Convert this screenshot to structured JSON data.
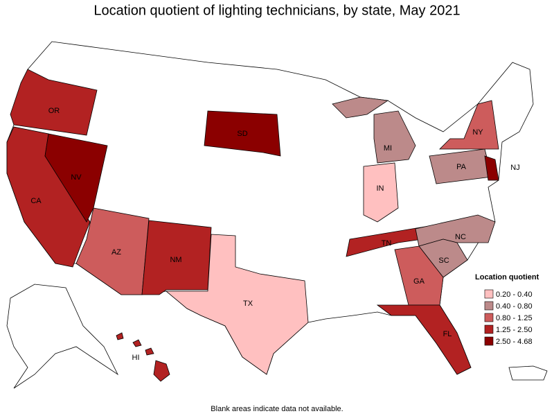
{
  "title": "Location quotient of lighting technicians, by state, May 2021",
  "footnote": "Blank areas indicate data not available.",
  "legend": {
    "title": "Location quotient",
    "items": [
      {
        "label": "0.20 - 0.40",
        "color": "#ffc0c0"
      },
      {
        "label": "0.40 - 0.80",
        "color": "#bc8a8a"
      },
      {
        "label": "0.80 - 1.25",
        "color": "#cd5c5c"
      },
      {
        "label": "1.25 - 2.50",
        "color": "#b22222"
      },
      {
        "label": "2.50 - 4.68",
        "color": "#8b0000"
      }
    ]
  },
  "states": [
    {
      "label": "OR",
      "color": "#b22222"
    },
    {
      "label": "CA",
      "color": "#b22222"
    },
    {
      "label": "NV",
      "color": "#8b0000"
    },
    {
      "label": "AZ",
      "color": "#cd5c5c"
    },
    {
      "label": "NM",
      "color": "#b22222"
    },
    {
      "label": "TX",
      "color": "#ffc0c0"
    },
    {
      "label": "SD",
      "color": "#8b0000"
    },
    {
      "label": "MI",
      "color": "#bc8a8a"
    },
    {
      "label": "IN",
      "color": "#ffc0c0"
    },
    {
      "label": "TN",
      "color": "#b22222"
    },
    {
      "label": "NC",
      "color": "#bc8a8a"
    },
    {
      "label": "SC",
      "color": "#bc8a8a"
    },
    {
      "label": "GA",
      "color": "#cd5c5c"
    },
    {
      "label": "FL",
      "color": "#b22222"
    },
    {
      "label": "PA",
      "color": "#bc8a8a"
    },
    {
      "label": "NY",
      "color": "#cd5c5c"
    },
    {
      "label": "NJ",
      "color": "#8b0000"
    },
    {
      "label": "HI",
      "color": "#b22222"
    }
  ]
}
